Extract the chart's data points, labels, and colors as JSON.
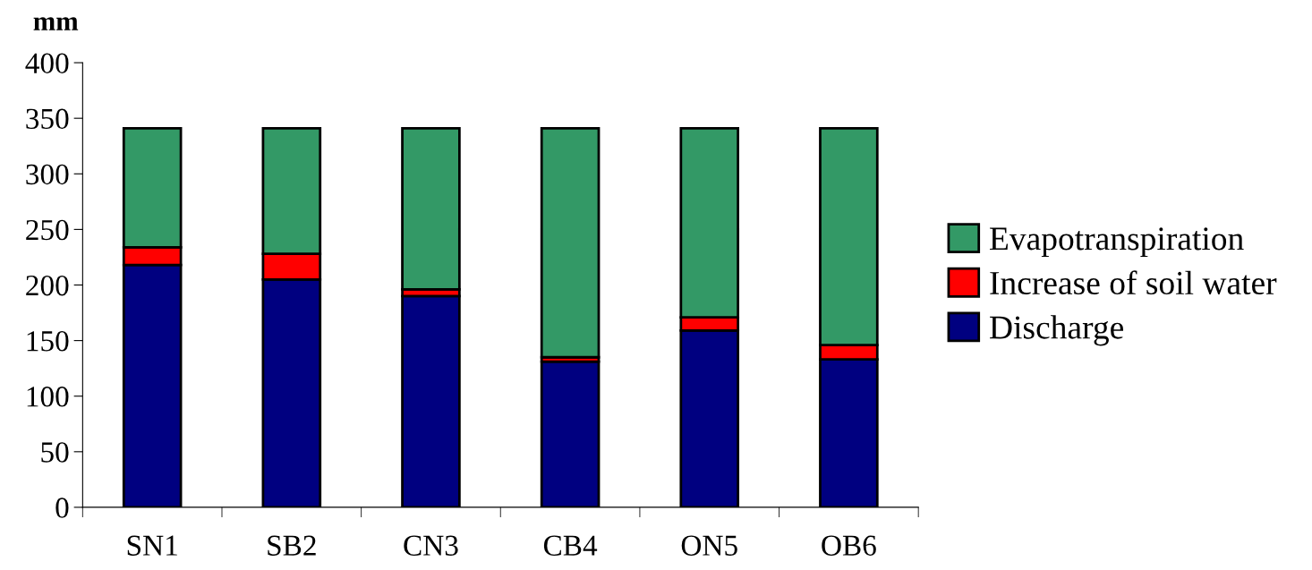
{
  "chart_data": {
    "type": "bar",
    "stacked": true,
    "ylabel": "mm",
    "categories": [
      "SN1",
      "SB2",
      "CN3",
      "CB4",
      "ON5",
      "OB6"
    ],
    "series": [
      {
        "name": "Discharge",
        "color": "#000080",
        "values": [
          218,
          205,
          190,
          131,
          159,
          133
        ]
      },
      {
        "name": "Increase of soil water",
        "color": "#ff0000",
        "values": [
          16,
          23,
          6,
          4,
          12,
          13
        ]
      },
      {
        "name": "Evapotranspiration",
        "color": "#339966",
        "values": [
          107,
          113,
          145,
          206,
          170,
          195
        ]
      }
    ],
    "ylim": [
      0,
      400
    ],
    "yticks": [
      0,
      50,
      100,
      150,
      200,
      250,
      300,
      350,
      400
    ],
    "grid": false,
    "legend": "right"
  }
}
